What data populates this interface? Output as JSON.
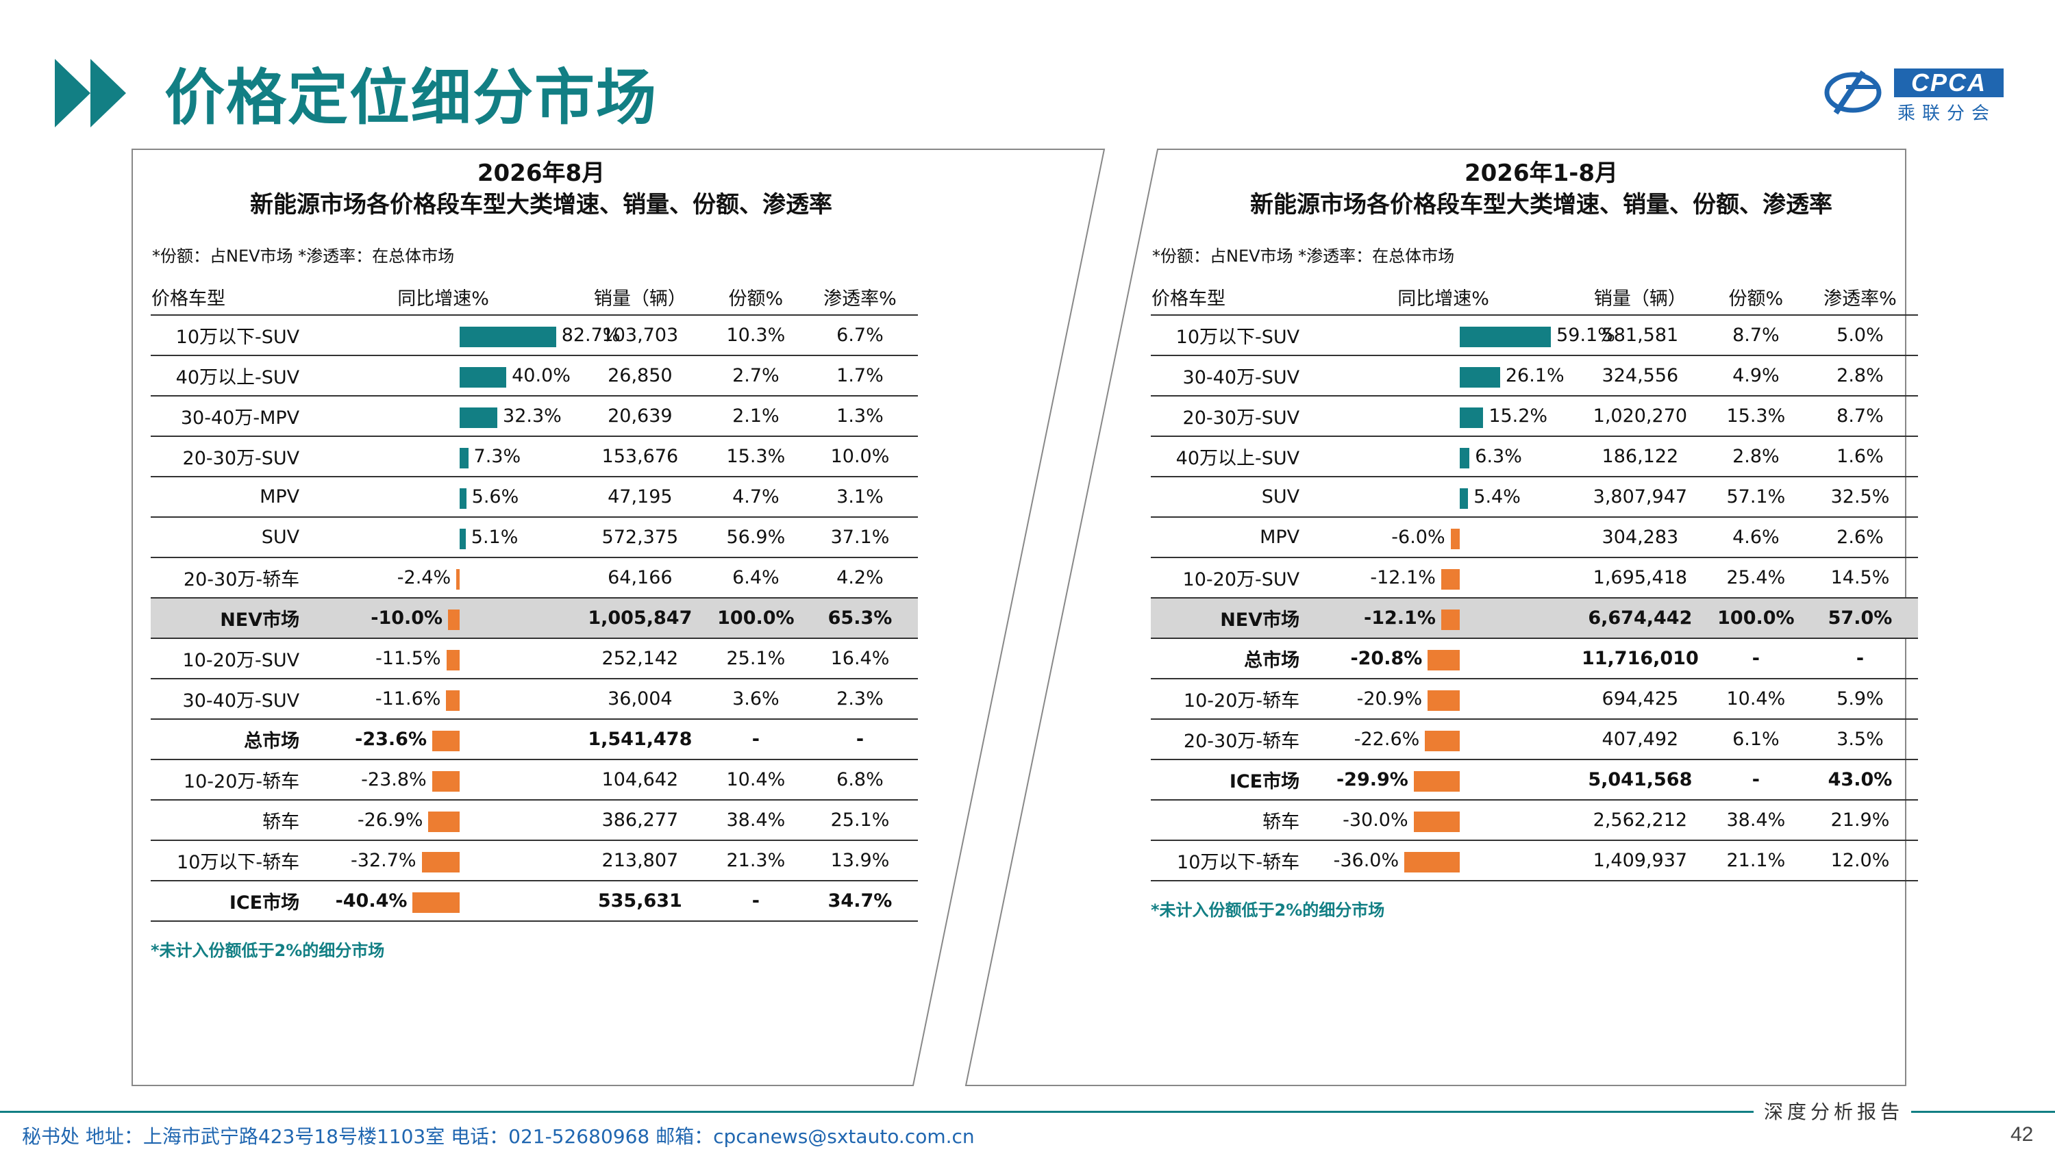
{
  "page": {
    "title": "价格定位细分市场",
    "logo_brand": "CPCA",
    "logo_sub": "乘联分会",
    "report_label": "深度分析报告",
    "footer_address": "秘书处   地址：上海市武宁路423号18号楼1103室   电话：021-52680968   邮箱：cpcanews@sxtauto.com.cn",
    "page_number": "42"
  },
  "colors": {
    "accent": "#127f84",
    "positive_bar": "#127f84",
    "negative_bar": "#ed7d31",
    "highlight_row": "#d6d6d6",
    "footnote": "#127f84",
    "logo": "#1f66b0"
  },
  "headers": [
    "价格车型",
    "同比增速%",
    "销量（辆）",
    "份额%",
    "渗透率%"
  ],
  "left": {
    "title1": "2026年8月",
    "title2": "新能源市场各价格段车型大类增速、销量、份额、渗透率",
    "note": "*份额：占NEV市场   *渗透率：在总体市场",
    "footnote": "*未计入份额低于2%的细分市场",
    "rows": [
      {
        "name": "10万以下-SUV",
        "growth": 82.7,
        "growth_label": "82.7%",
        "sales": "103,703",
        "share": "10.3%",
        "pen": "6.7%"
      },
      {
        "name": "40万以上-SUV",
        "growth": 40.0,
        "growth_label": "40.0%",
        "sales": "26,850",
        "share": "2.7%",
        "pen": "1.7%"
      },
      {
        "name": "30-40万-MPV",
        "growth": 32.3,
        "growth_label": "32.3%",
        "sales": "20,639",
        "share": "2.1%",
        "pen": "1.3%"
      },
      {
        "name": "20-30万-SUV",
        "growth": 7.3,
        "growth_label": "7.3%",
        "sales": "153,676",
        "share": "15.3%",
        "pen": "10.0%"
      },
      {
        "name": "MPV",
        "growth": 5.6,
        "growth_label": "5.6%",
        "sales": "47,195",
        "share": "4.7%",
        "pen": "3.1%"
      },
      {
        "name": "SUV",
        "growth": 5.1,
        "growth_label": "5.1%",
        "sales": "572,375",
        "share": "56.9%",
        "pen": "37.1%"
      },
      {
        "name": "20-30万-轿车",
        "growth": -2.4,
        "growth_label": "-2.4%",
        "sales": "64,166",
        "share": "6.4%",
        "pen": "4.2%"
      },
      {
        "name": "NEV市场",
        "growth": -10.0,
        "growth_label": "-10.0%",
        "sales": "1,005,847",
        "share": "100.0%",
        "pen": "65.3%",
        "bold": true,
        "shade": true
      },
      {
        "name": "10-20万-SUV",
        "growth": -11.5,
        "growth_label": "-11.5%",
        "sales": "252,142",
        "share": "25.1%",
        "pen": "16.4%"
      },
      {
        "name": "30-40万-SUV",
        "growth": -11.6,
        "growth_label": "-11.6%",
        "sales": "36,004",
        "share": "3.6%",
        "pen": "2.3%"
      },
      {
        "name": "总市场",
        "growth": -23.6,
        "growth_label": "-23.6%",
        "sales": "1,541,478",
        "share": "-",
        "pen": "-",
        "bold": true
      },
      {
        "name": "10-20万-轿车",
        "growth": -23.8,
        "growth_label": "-23.8%",
        "sales": "104,642",
        "share": "10.4%",
        "pen": "6.8%"
      },
      {
        "name": "轿车",
        "growth": -26.9,
        "growth_label": "-26.9%",
        "sales": "386,277",
        "share": "38.4%",
        "pen": "25.1%"
      },
      {
        "name": "10万以下-轿车",
        "growth": -32.7,
        "growth_label": "-32.7%",
        "sales": "213,807",
        "share": "21.3%",
        "pen": "13.9%"
      },
      {
        "name": "ICE市场",
        "growth": -40.4,
        "growth_label": "-40.4%",
        "sales": "535,631",
        "share": "-",
        "pen": "34.7%",
        "bold": true
      }
    ]
  },
  "right": {
    "title1": "2026年1-8月",
    "title2": "新能源市场各价格段车型大类增速、销量、份额、渗透率",
    "note": "*份额：占NEV市场   *渗透率：在总体市场",
    "footnote": "*未计入份额低于2%的细分市场",
    "rows": [
      {
        "name": "10万以下-SUV",
        "growth": 59.1,
        "growth_label": "59.1%",
        "sales": "581,581",
        "share": "8.7%",
        "pen": "5.0%"
      },
      {
        "name": "30-40万-SUV",
        "growth": 26.1,
        "growth_label": "26.1%",
        "sales": "324,556",
        "share": "4.9%",
        "pen": "2.8%"
      },
      {
        "name": "20-30万-SUV",
        "growth": 15.2,
        "growth_label": "15.2%",
        "sales": "1,020,270",
        "share": "15.3%",
        "pen": "8.7%"
      },
      {
        "name": "40万以上-SUV",
        "growth": 6.3,
        "growth_label": "6.3%",
        "sales": "186,122",
        "share": "2.8%",
        "pen": "1.6%"
      },
      {
        "name": "SUV",
        "growth": 5.4,
        "growth_label": "5.4%",
        "sales": "3,807,947",
        "share": "57.1%",
        "pen": "32.5%"
      },
      {
        "name": "MPV",
        "growth": -6.0,
        "growth_label": "-6.0%",
        "sales": "304,283",
        "share": "4.6%",
        "pen": "2.6%"
      },
      {
        "name": "10-20万-SUV",
        "growth": -12.1,
        "growth_label": "-12.1%",
        "sales": "1,695,418",
        "share": "25.4%",
        "pen": "14.5%"
      },
      {
        "name": "NEV市场",
        "growth": -12.1,
        "growth_label": "-12.1%",
        "sales": "6,674,442",
        "share": "100.0%",
        "pen": "57.0%",
        "bold": true,
        "shade": true
      },
      {
        "name": "总市场",
        "growth": -20.8,
        "growth_label": "-20.8%",
        "sales": "11,716,010",
        "share": "-",
        "pen": "-",
        "bold": true
      },
      {
        "name": "10-20万-轿车",
        "growth": -20.9,
        "growth_label": "-20.9%",
        "sales": "694,425",
        "share": "10.4%",
        "pen": "5.9%"
      },
      {
        "name": "20-30万-轿车",
        "growth": -22.6,
        "growth_label": "-22.6%",
        "sales": "407,492",
        "share": "6.1%",
        "pen": "3.5%"
      },
      {
        "name": "ICE市场",
        "growth": -29.9,
        "growth_label": "-29.9%",
        "sales": "5,041,568",
        "share": "-",
        "pen": "43.0%",
        "bold": true
      },
      {
        "name": "轿车",
        "growth": -30.0,
        "growth_label": "-30.0%",
        "sales": "2,562,212",
        "share": "38.4%",
        "pen": "21.9%"
      },
      {
        "name": "10万以下-轿车",
        "growth": -36.0,
        "growth_label": "-36.0%",
        "sales": "1,409,937",
        "share": "21.1%",
        "pen": "12.0%"
      }
    ]
  }
}
